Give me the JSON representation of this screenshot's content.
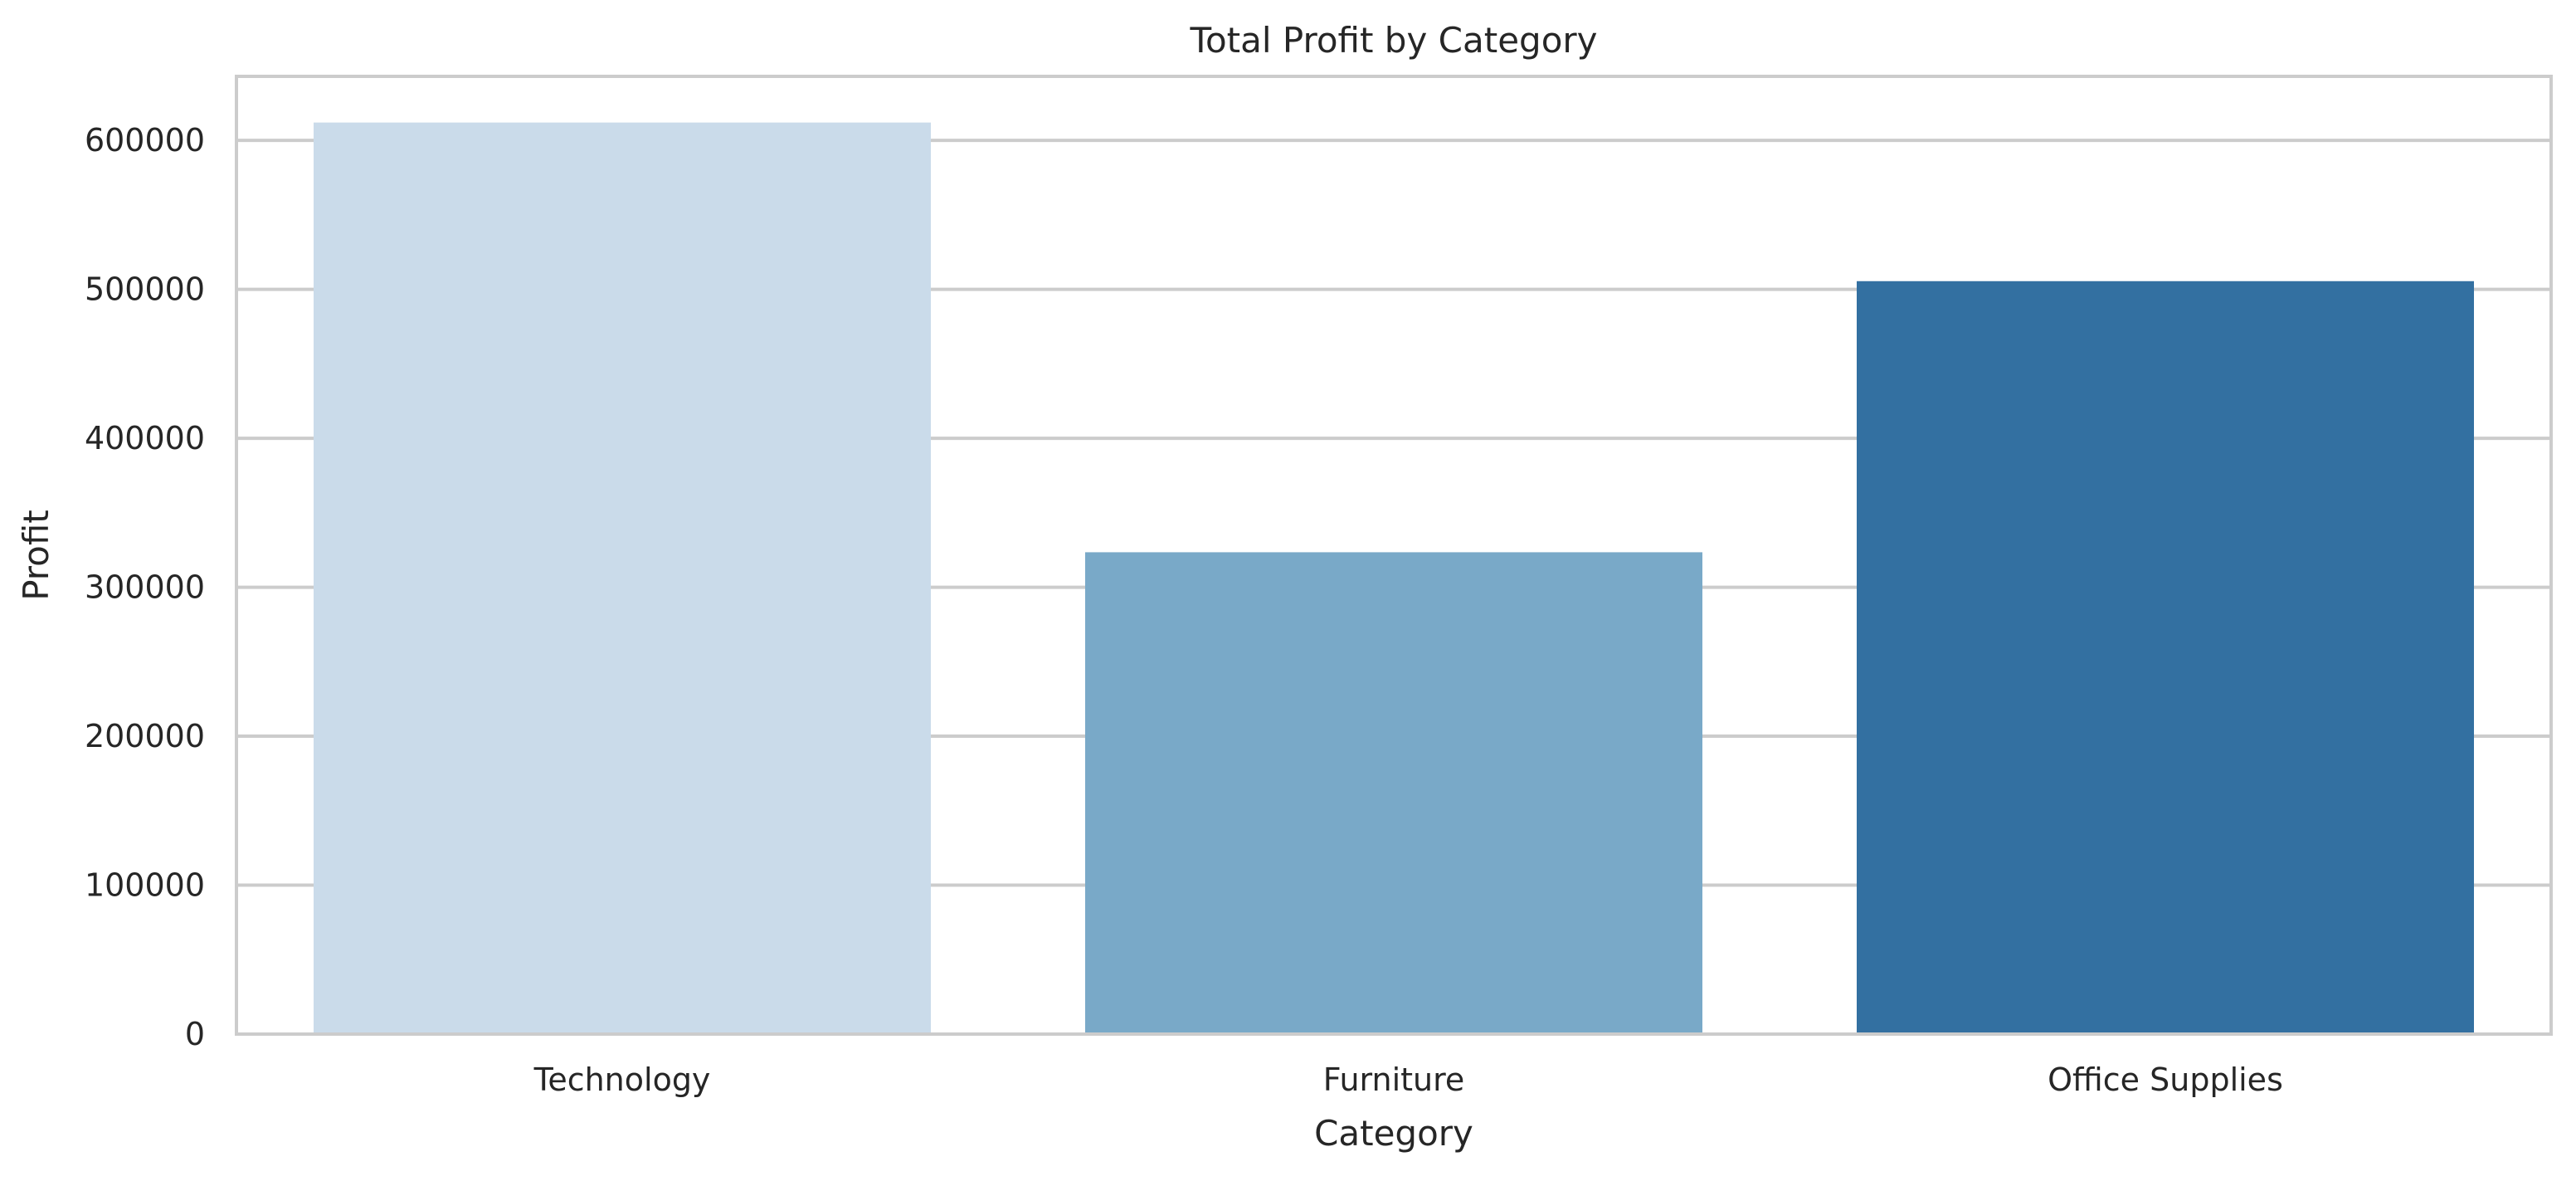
{
  "chart_data": {
    "type": "bar",
    "title": "Total Profit by Category",
    "xlabel": "Category",
    "ylabel": "Profit",
    "categories": [
      "Technology",
      "Furniture",
      "Office Supplies"
    ],
    "values": [
      612000,
      323500,
      505500
    ],
    "ylim": [
      0,
      643000
    ],
    "yticks": [
      0,
      100000,
      200000,
      300000,
      400000,
      500000,
      600000
    ],
    "ytick_labels": [
      "0",
      "100000",
      "200000",
      "300000",
      "400000",
      "500000",
      "600000"
    ],
    "colors": [
      "#cadbea",
      "#79a9c8",
      "#3370a1"
    ],
    "grid": "horizontal",
    "legend": "none"
  }
}
